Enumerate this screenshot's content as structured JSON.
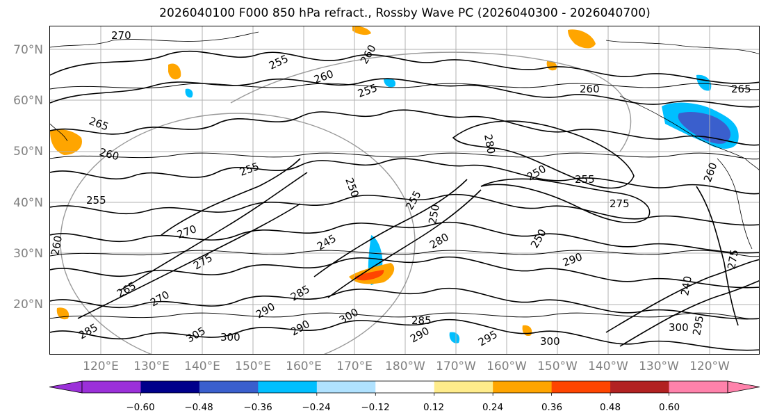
{
  "title": "2026040100 F000 850 hPa refract., Rossby Wave PC (2026040300 - 2026040700)",
  "map": {
    "latitude_labels": [
      "70°N",
      "60°N",
      "50°N",
      "40°N",
      "30°N",
      "20°N"
    ],
    "longitude_labels": [
      "120°E",
      "130°E",
      "140°E",
      "150°E",
      "160°E",
      "170°E",
      "180°W",
      "170°W",
      "160°W",
      "150°W",
      "140°W",
      "130°W",
      "120°W"
    ],
    "contour_labels": [
      "270",
      "255",
      "260",
      "255",
      "260",
      "260",
      "265",
      "265",
      "260",
      "255",
      "255",
      "250",
      "255",
      "250",
      "280",
      "255",
      "260",
      "250",
      "275",
      "250",
      "290",
      "245",
      "270",
      "275",
      "260",
      "280",
      "285",
      "265",
      "295",
      "290",
      "270",
      "300",
      "285",
      "300",
      "305",
      "290",
      "290",
      "285",
      "295",
      "300",
      "240",
      "275",
      "300"
    ],
    "grid": true,
    "coastlines": true
  },
  "colorbar": {
    "colors": [
      "#9b30d9",
      "#00008b",
      "#3a5fcd",
      "#00bfff",
      "#b0e2ff",
      "#ffffff",
      "#ffec8b",
      "#ffa500",
      "#ff4500",
      "#b22222",
      "#ff82ab"
    ],
    "ticks": [
      "−0.60",
      "−0.48",
      "−0.36",
      "−0.24",
      "−0.12",
      "0.12",
      "0.24",
      "0.36",
      "0.48",
      "0.60"
    ],
    "extend": "both"
  }
}
